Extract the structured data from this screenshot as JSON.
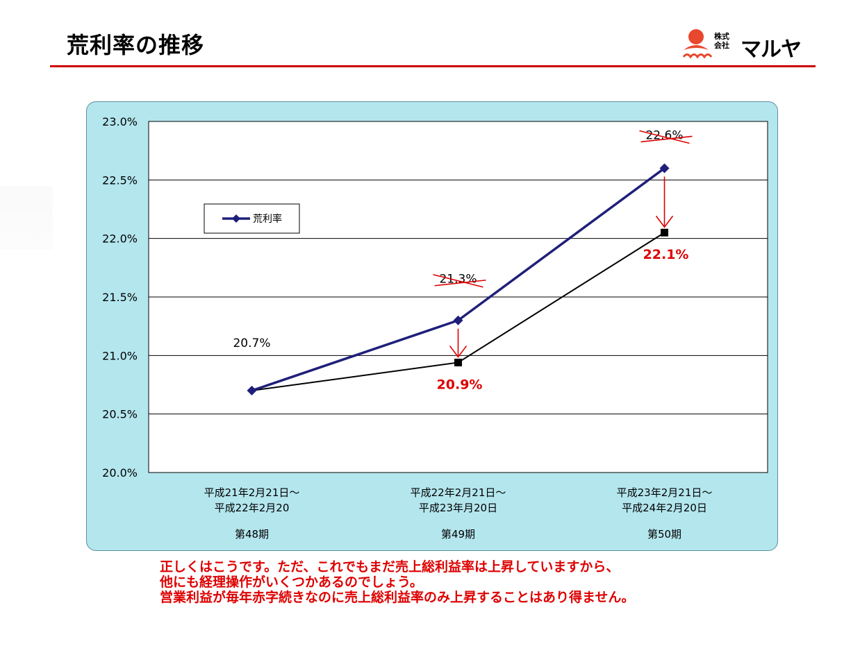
{
  "page": {
    "title": "荒利率の推移"
  },
  "logo": {
    "sub_line1": "株式",
    "sub_line2": "会社",
    "brand": "マルヤ"
  },
  "colors": {
    "accent_red": "#dd0000",
    "series_navy": "#1f1f7a",
    "panel_bg": "#b4e6ee",
    "title_rule": "#cc0000"
  },
  "chart_data": {
    "type": "line",
    "ylim": [
      20.0,
      23.0
    ],
    "yticks": [
      "23.0%",
      "22.5%",
      "22.0%",
      "21.5%",
      "21.0%",
      "20.5%",
      "20.0%"
    ],
    "grid": true,
    "legend_position": "upper-left",
    "categories": [
      {
        "line1": "平成21年2月21日～",
        "line2": "平成22年2月20",
        "period": "第48期"
      },
      {
        "line1": "平成22年2月21日～",
        "line2": "平成23年月20日",
        "period": "第49期"
      },
      {
        "line1": "平成23年2月21日～",
        "line2": "平成24年2月20日",
        "period": "第50期"
      }
    ],
    "series": [
      {
        "name": "荒利率",
        "values": [
          20.7,
          21.3,
          22.6
        ],
        "color": "#1f1f7a",
        "marker": "diamond"
      },
      {
        "values": [
          20.7,
          20.94,
          22.05
        ],
        "color": "#000000",
        "marker": "square"
      }
    ],
    "annotations": {
      "original_labels": [
        "20.7%",
        "21.3%",
        "22.6%"
      ],
      "crossed_out": [
        false,
        true,
        true
      ],
      "corrected_labels": [
        "",
        "20.9%",
        "22.1%"
      ]
    }
  },
  "note": {
    "line1": "正しくはこうです。ただ、これでもまだ売上総利益率は上昇していますから、",
    "line2": "他にも経理操作がいくつかあるのでしょう。",
    "line3": "営業利益が毎年赤字続きなのに売上総利益率のみ上昇することはあり得ません。"
  }
}
